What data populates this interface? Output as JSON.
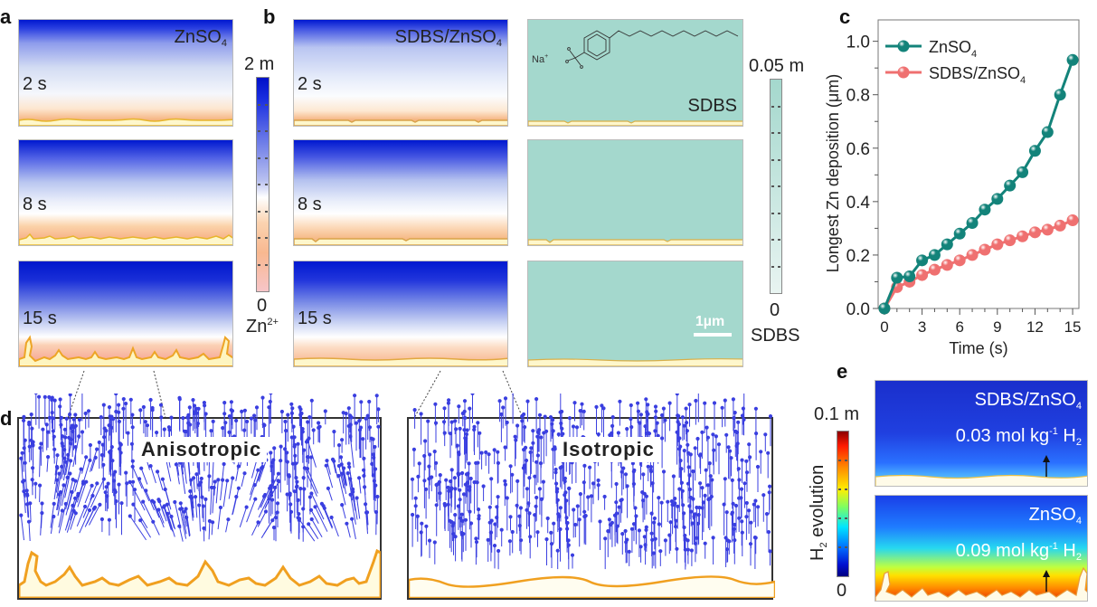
{
  "panels": {
    "a": {
      "label": "a",
      "electrolyte": "ZnSO",
      "electrolyte_sub": "4",
      "times": [
        "2 s",
        "8 s",
        "15 s"
      ]
    },
    "b": {
      "label": "b",
      "electrolyte": "SDBS/ZnSO",
      "electrolyte_sub": "4",
      "times": [
        "2 s",
        "8 s",
        "15 s"
      ],
      "sdbs_label": "SDBS",
      "molecule_label": "Na",
      "molecule_label_sup": "+",
      "scale_bar": "1µm"
    },
    "c": {
      "label": "c"
    },
    "d": {
      "label": "d",
      "left_tag": "Anisotropic",
      "right_tag": "Isotropic"
    },
    "e": {
      "label": "e",
      "top": {
        "electrolyte": "SDBS/ZnSO",
        "electrolyte_sub": "4",
        "value": "0.03 mol kg",
        "unit_sup": "-1",
        "species": "H",
        "species_sub": "2"
      },
      "bottom": {
        "electrolyte": "ZnSO",
        "electrolyte_sub": "4",
        "value": "0.09 mol kg",
        "unit_sup": "-1",
        "species": "H",
        "species_sub": "2"
      }
    }
  },
  "colorbars": {
    "zn": {
      "max": "2 m",
      "min": "0",
      "label": "Zn",
      "label_sup": "2+",
      "low_color": "#f7c5c8",
      "mid_color": "#ffffff",
      "high_color": "#0010c8"
    },
    "sdbs": {
      "max": "0.05 m",
      "min": "0",
      "label": "SDBS",
      "low_color": "#e8f4f1",
      "high_color": "#a4d8cd"
    },
    "h2": {
      "max": "0.1 m",
      "min": "0",
      "label": "H",
      "label_sub": "2",
      "label_rest": " evolution"
    }
  },
  "chart_data": {
    "type": "line",
    "title": "",
    "xlabel": "Time (s)",
    "ylabel": "Longest Zn deposition (μm)",
    "xlim": [
      -0.5,
      15.5
    ],
    "ylim": [
      0,
      1.08
    ],
    "xticks": [
      0,
      3,
      6,
      9,
      12,
      15
    ],
    "yticks": [
      0.0,
      0.2,
      0.4,
      0.6,
      0.8,
      1.0
    ],
    "ytick_labels": [
      "0.0",
      "0.2",
      "0.4",
      "0.6",
      "0.8",
      "1.0"
    ],
    "grid": false,
    "legend_position": "top-left",
    "x": [
      0,
      1,
      2,
      3,
      4,
      5,
      6,
      7,
      8,
      9,
      10,
      11,
      12,
      13,
      14,
      15
    ],
    "series": [
      {
        "name": "ZnSO",
        "name_sub": "4",
        "color": "#13837a",
        "values": [
          0.0,
          0.115,
          0.12,
          0.18,
          0.2,
          0.24,
          0.28,
          0.32,
          0.37,
          0.41,
          0.46,
          0.51,
          0.59,
          0.66,
          0.8,
          0.93
        ]
      },
      {
        "name": "SDBS/ZnSO",
        "name_sub": "4",
        "color": "#ef7070",
        "values": [
          0.0,
          0.08,
          0.1,
          0.125,
          0.145,
          0.163,
          0.18,
          0.2,
          0.22,
          0.24,
          0.255,
          0.27,
          0.285,
          0.295,
          0.31,
          0.33
        ]
      }
    ]
  }
}
